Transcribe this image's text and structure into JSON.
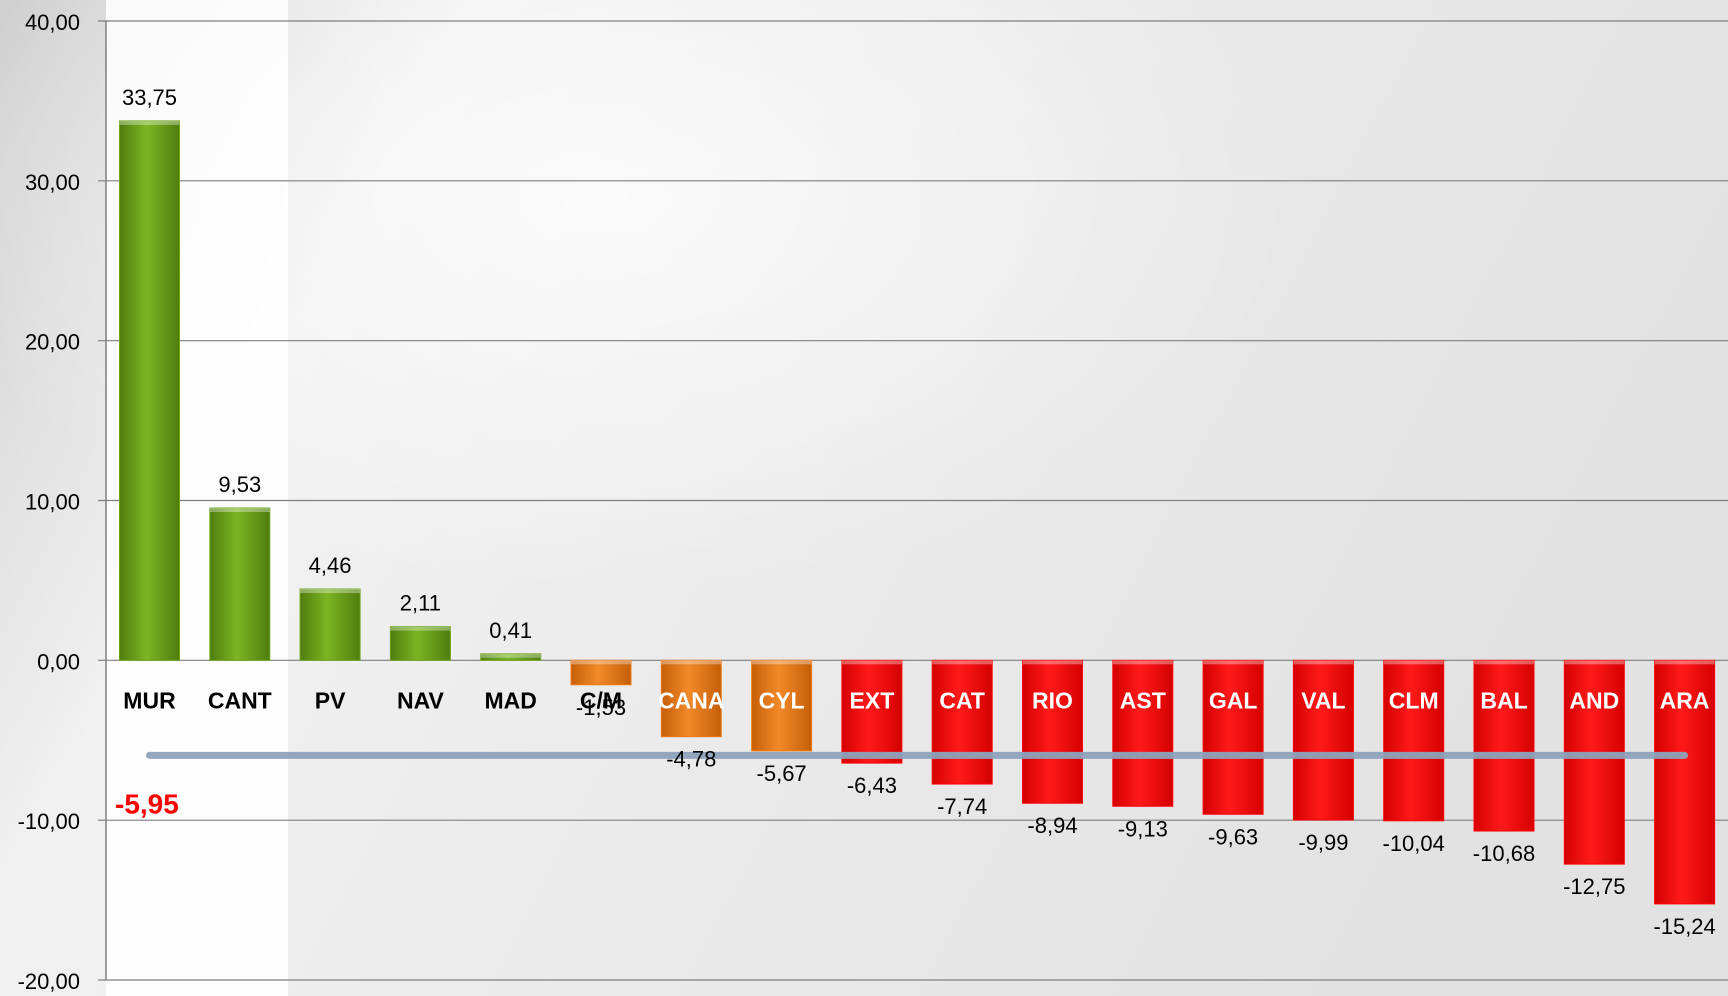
{
  "chart_data": {
    "type": "bar",
    "categories": [
      "MUR",
      "CANT",
      "PV",
      "NAV",
      "MAD",
      "C/M",
      "CANA",
      "CYL",
      "EXT",
      "CAT",
      "RIO",
      "AST",
      "GAL",
      "VAL",
      "CLM",
      "BAL",
      "AND",
      "ARA"
    ],
    "values": [
      33.75,
      9.53,
      4.46,
      2.11,
      0.41,
      -1.53,
      -4.78,
      -5.67,
      -6.43,
      -7.74,
      -8.94,
      -9.13,
      -9.63,
      -9.99,
      -10.04,
      -10.68,
      -12.75,
      -15.24
    ],
    "value_labels": [
      "33,75",
      "9,53",
      "4,46",
      "2,11",
      "0,41",
      "-1,53",
      "-4,78",
      "-5,67",
      "-6,43",
      "-7,74",
      "-8,94",
      "-9,13",
      "-9,63",
      "-9,99",
      "-10,04",
      "-10,68",
      "-12,75",
      "-15,24"
    ],
    "bar_groups": [
      "green",
      "green",
      "green",
      "green",
      "green",
      "orange",
      "orange",
      "orange",
      "red",
      "red",
      "red",
      "red",
      "red",
      "red",
      "red",
      "red",
      "red",
      "red"
    ],
    "ylim": [
      -20,
      40
    ],
    "yticks": [
      40,
      30,
      20,
      10,
      0,
      -10,
      -20
    ],
    "ytick_labels": [
      "40,00",
      "30,00",
      "20,00",
      "10,00",
      "0,00",
      "-10,00",
      "-20,00"
    ],
    "grid": true,
    "average": {
      "value": -5.95,
      "label": "-5,95"
    },
    "title": "",
    "xlabel": "",
    "ylabel": "",
    "colors": {
      "green": "#6fa51c",
      "orange": "#ee7d1a",
      "red": "#ff0000",
      "average_line": "#8ea3bd",
      "average_label": "#ff0000",
      "grid": "#7f7f7f"
    }
  }
}
